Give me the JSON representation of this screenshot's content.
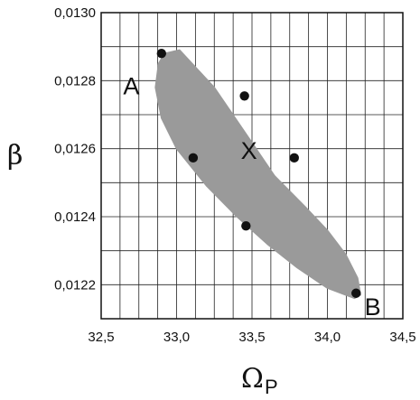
{
  "chart_data": {
    "type": "scatter",
    "xlabel": "Ω",
    "xlabel_subscript": "P",
    "ylabel": "β",
    "xlim": [
      32.5,
      34.5
    ],
    "ylim": [
      0.0121,
      0.013
    ],
    "x_ticks": [
      "32,5",
      "33,0",
      "33,5",
      "34,0",
      "34,5"
    ],
    "y_ticks": [
      "0,0122",
      "0,0124",
      "0,0126",
      "0,0128",
      "0,0130"
    ],
    "x_minor_step": 0.125,
    "y_minor_step": 0.0001,
    "grid": true,
    "region": {
      "color": "#9a9a9a",
      "outline": [
        [
          32.88,
          0.01285
        ],
        [
          32.92,
          0.01288
        ],
        [
          33.02,
          0.01289
        ],
        [
          33.25,
          0.01278
        ],
        [
          33.45,
          0.01265
        ],
        [
          33.65,
          0.01252
        ],
        [
          33.85,
          0.01243
        ],
        [
          34.0,
          0.01236
        ],
        [
          34.12,
          0.01229
        ],
        [
          34.2,
          0.01222
        ],
        [
          34.22,
          0.01217
        ],
        [
          34.18,
          0.01216
        ],
        [
          34.0,
          0.01219
        ],
        [
          33.8,
          0.01225
        ],
        [
          33.6,
          0.01232
        ],
        [
          33.4,
          0.0124
        ],
        [
          33.2,
          0.01249
        ],
        [
          33.0,
          0.0126
        ],
        [
          32.9,
          0.01269
        ],
        [
          32.86,
          0.01278
        ]
      ]
    },
    "points": [
      {
        "x": 32.9,
        "y": 0.01288
      },
      {
        "x": 33.45,
        "y": 0.012755
      },
      {
        "x": 33.11,
        "y": 0.012573
      },
      {
        "x": 33.78,
        "y": 0.012573
      },
      {
        "x": 33.46,
        "y": 0.012373
      },
      {
        "x": 34.19,
        "y": 0.012175
      }
    ],
    "point_color": "#111111",
    "annotations": [
      {
        "text": "A",
        "x": 32.7,
        "y": 0.01276
      },
      {
        "text": "X",
        "x": 33.48,
        "y": 0.01257
      },
      {
        "text": "B",
        "x": 34.3,
        "y": 0.01211
      }
    ]
  }
}
